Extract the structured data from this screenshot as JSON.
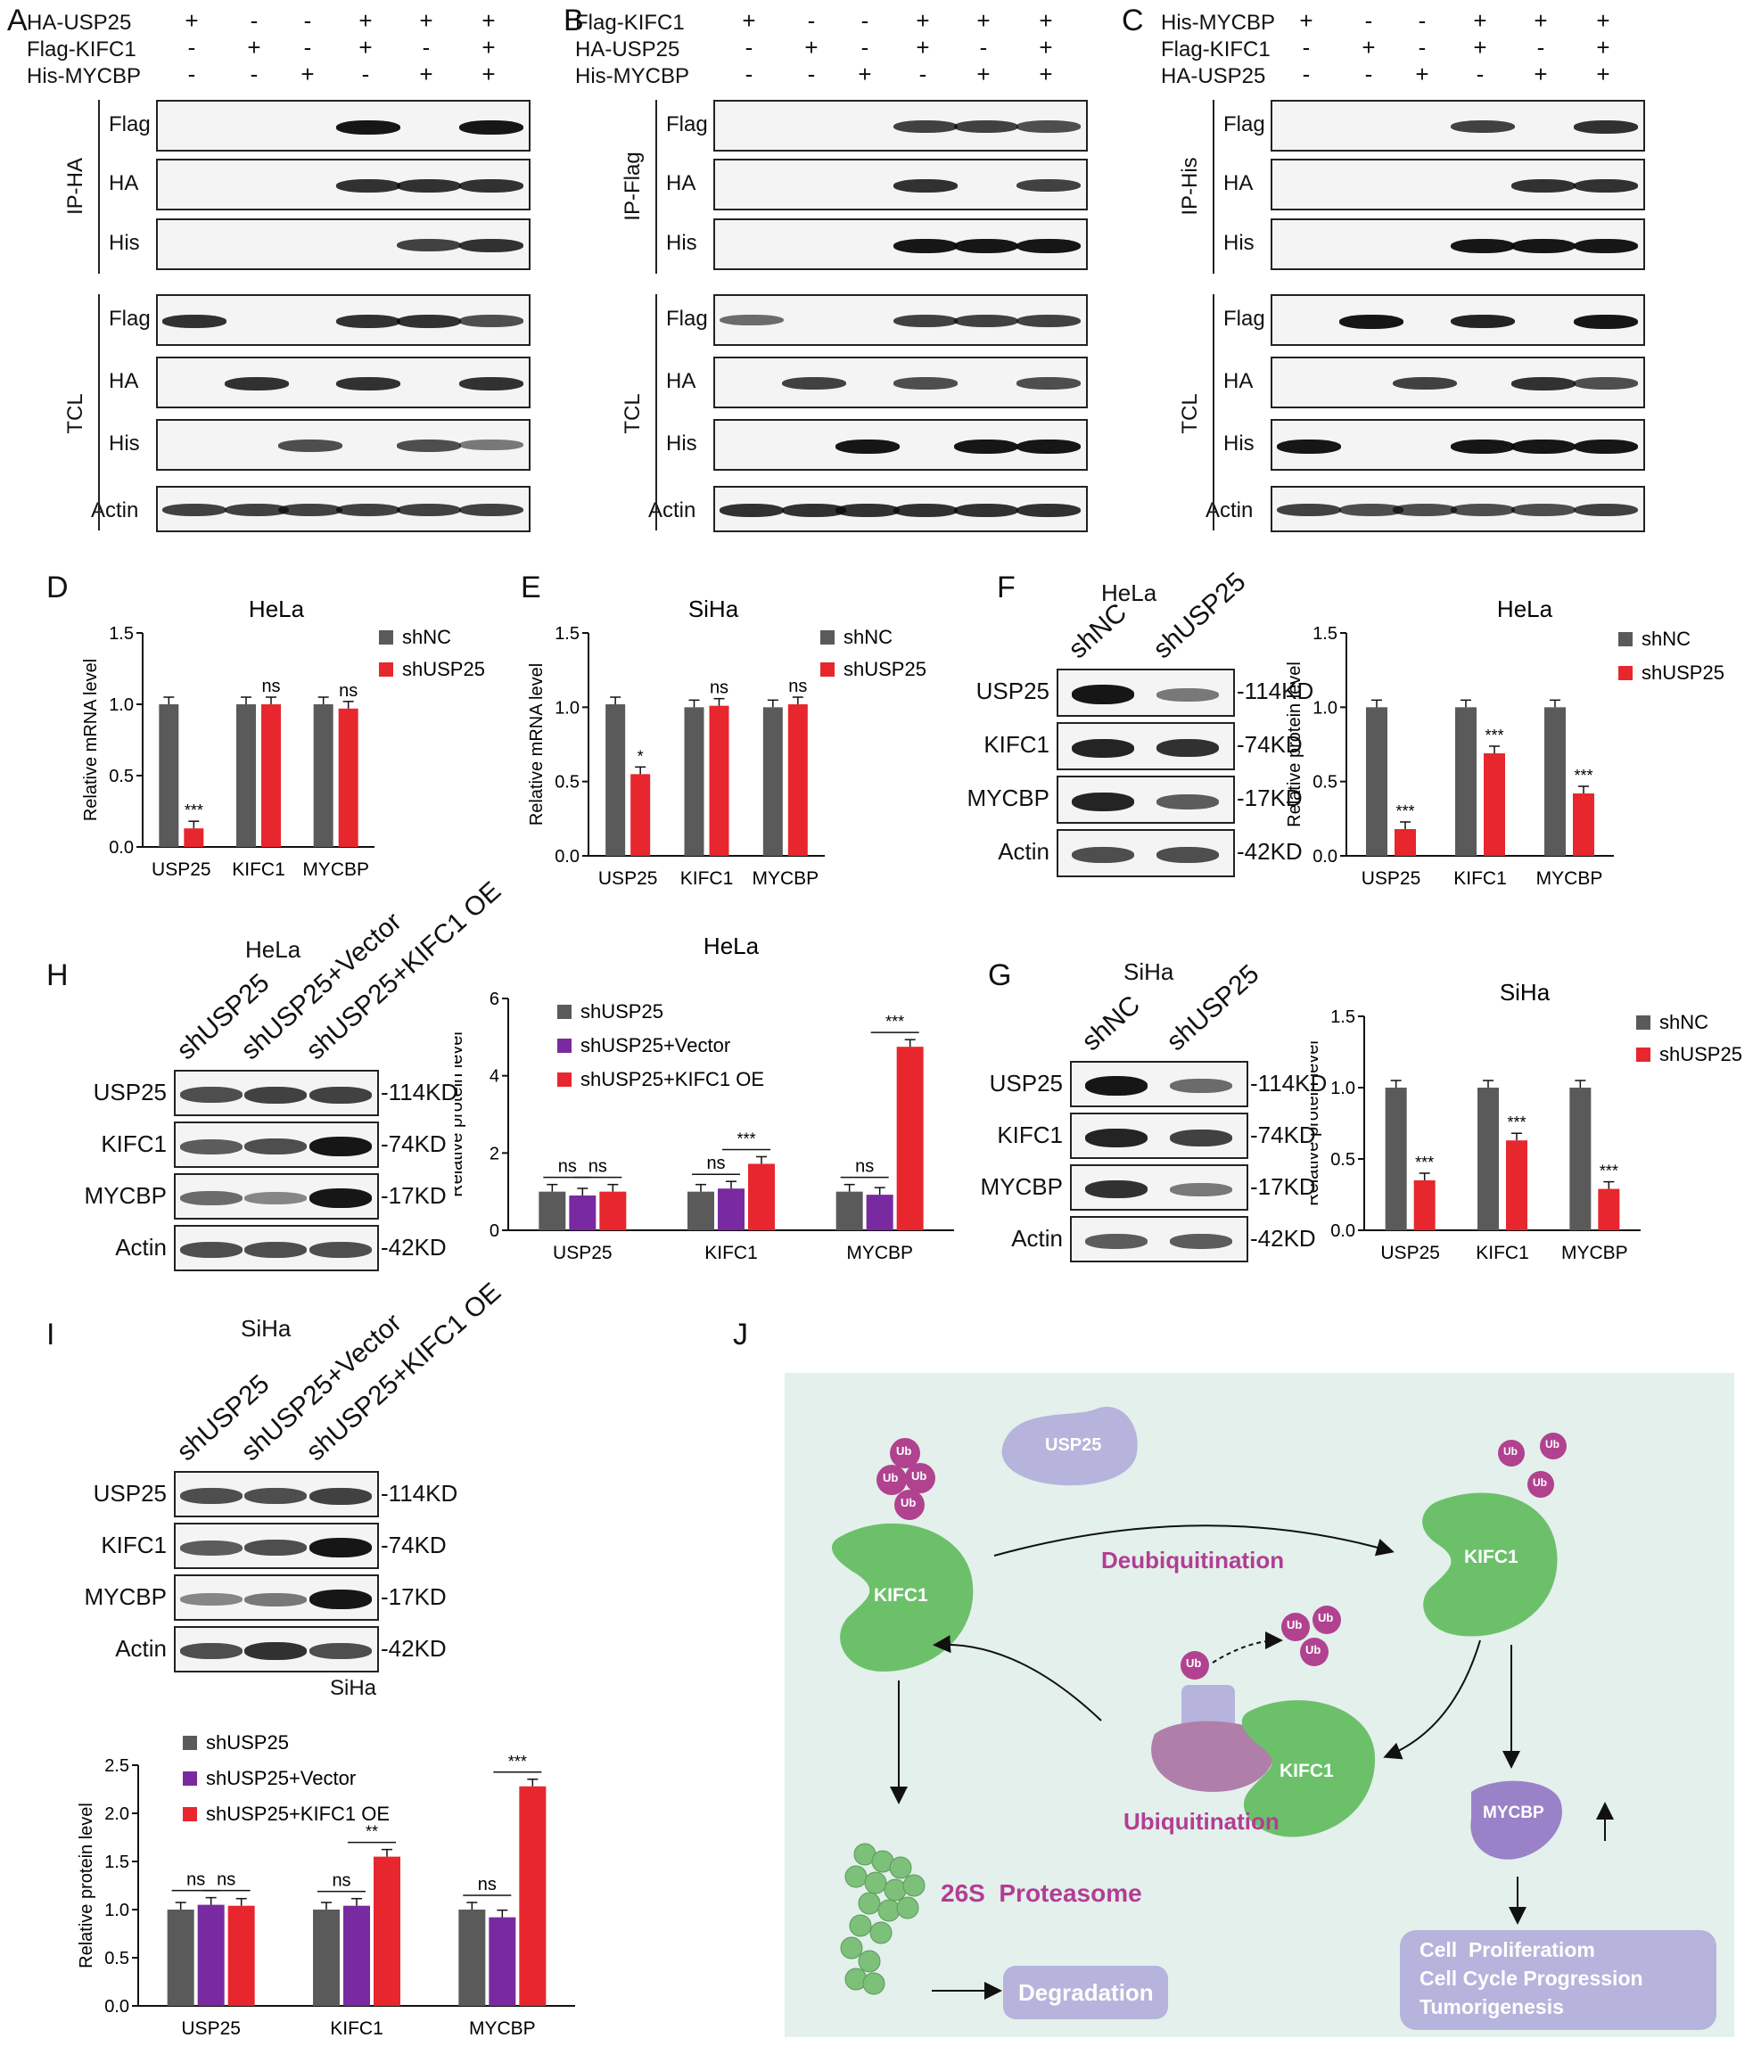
{
  "colors": {
    "shNC": "#5a5a5a",
    "shUSP25": "#e8262d",
    "shVector": "#7a2aa0",
    "bgJ": "#e3f0ec",
    "ub": "#b1428f",
    "kifc1": "#6cc06a",
    "usp25": "#b6b4dc",
    "text_purple": "#b33d93"
  },
  "panel_labels": [
    "A",
    "B",
    "C",
    "D",
    "E",
    "F",
    "G",
    "H",
    "I",
    "J"
  ],
  "panelA": {
    "rows": [
      {
        "label": "HA-USP25",
        "signs": [
          "+",
          "-",
          "-",
          "+",
          "+",
          "+"
        ]
      },
      {
        "label": "Flag-KIFC1",
        "signs": [
          "-",
          "+",
          "-",
          "+",
          "-",
          "+"
        ]
      },
      {
        "label": "His-MYCBP",
        "signs": [
          "-",
          "-",
          "+",
          "-",
          "+",
          "+"
        ]
      }
    ],
    "ip_group": "IP-HA",
    "tcl_group": "TCL",
    "blots": [
      "Flag",
      "HA",
      "His",
      "Flag",
      "HA",
      "His",
      "Actin"
    ]
  },
  "panelB": {
    "rows": [
      {
        "label": "Flag-KIFC1",
        "signs": [
          "+",
          "-",
          "-",
          "+",
          "+",
          "+"
        ]
      },
      {
        "label": "HA-USP25",
        "signs": [
          "-",
          "+",
          "-",
          "+",
          "-",
          "+"
        ]
      },
      {
        "label": "His-MYCBP",
        "signs": [
          "-",
          "-",
          "+",
          "-",
          "+",
          "+"
        ]
      }
    ],
    "ip_group": "IP-Flag",
    "tcl_group": "TCL",
    "blots": [
      "Flag",
      "HA",
      "His",
      "Flag",
      "HA",
      "His",
      "Actin"
    ]
  },
  "panelC": {
    "rows": [
      {
        "label": "His-MYCBP",
        "signs": [
          "+",
          "-",
          "-",
          "+",
          "+",
          "+"
        ]
      },
      {
        "label": "Flag-KIFC1",
        "signs": [
          "-",
          "+",
          "-",
          "+",
          "-",
          "+"
        ]
      },
      {
        "label": "HA-USP25",
        "signs": [
          "-",
          "-",
          "+",
          "-",
          "+",
          "+"
        ]
      }
    ],
    "ip_group": "IP-His",
    "tcl_group": "TCL",
    "blots": [
      "Flag",
      "HA",
      "His",
      "Flag",
      "HA",
      "His",
      "Actin"
    ]
  },
  "chart_data": [
    {
      "id": "D",
      "type": "bar",
      "title": "HeLa",
      "ylabel": "Relative mRNA level",
      "ylim": [
        0,
        1.5
      ],
      "yticks": [
        "0.0",
        "0.5",
        "1.0",
        "1.5"
      ],
      "categories": [
        "USP25",
        "KIFC1",
        "MYCBP"
      ],
      "series": [
        {
          "name": "shNC",
          "values": [
            1.0,
            1.0,
            1.0
          ]
        },
        {
          "name": "shUSP25",
          "values": [
            0.13,
            1.0,
            0.97
          ]
        }
      ],
      "annotations": [
        "***",
        "ns",
        "ns"
      ]
    },
    {
      "id": "E",
      "type": "bar",
      "title": "SiHa",
      "ylabel": "Relative mRNA level",
      "ylim": [
        0,
        1.5
      ],
      "yticks": [
        "0.0",
        "0.5",
        "1.0",
        "1.5"
      ],
      "categories": [
        "USP25",
        "KIFC1",
        "MYCBP"
      ],
      "series": [
        {
          "name": "shNC",
          "values": [
            1.02,
            1.0,
            1.0
          ]
        },
        {
          "name": "shUSP25",
          "values": [
            0.55,
            1.01,
            1.02
          ]
        }
      ],
      "annotations": [
        "*",
        "ns",
        "ns"
      ]
    },
    {
      "id": "F",
      "type": "bar",
      "title": "HeLa",
      "ylabel": "Relative protein level",
      "ylim": [
        0,
        1.5
      ],
      "yticks": [
        "0.0",
        "0.5",
        "1.0",
        "1.5"
      ],
      "categories": [
        "USP25",
        "KIFC1",
        "MYCBP"
      ],
      "series": [
        {
          "name": "shNC",
          "values": [
            1.0,
            1.0,
            1.0
          ]
        },
        {
          "name": "shUSP25",
          "values": [
            0.18,
            0.69,
            0.42
          ]
        }
      ],
      "annotations": [
        "***",
        "***",
        "***"
      ]
    },
    {
      "id": "G",
      "type": "bar",
      "title": "SiHa",
      "ylabel": "Relative protein level",
      "ylim": [
        0,
        1.5
      ],
      "yticks": [
        "0.0",
        "0.5",
        "1.0",
        "1.5"
      ],
      "categories": [
        "USP25",
        "KIFC1",
        "MYCBP"
      ],
      "series": [
        {
          "name": "shNC",
          "values": [
            1.0,
            1.0,
            1.0
          ]
        },
        {
          "name": "shUSP25",
          "values": [
            0.35,
            0.63,
            0.29
          ]
        }
      ],
      "annotations": [
        "***",
        "***",
        "***"
      ]
    },
    {
      "id": "H",
      "type": "bar",
      "title": "HeLa",
      "ylabel": "Relative protein level",
      "ylim": [
        0,
        6
      ],
      "yticks": [
        "0",
        "2",
        "4",
        "6"
      ],
      "categories": [
        "USP25",
        "KIFC1",
        "MYCBP"
      ],
      "series": [
        {
          "name": "shUSP25",
          "values": [
            1.0,
            1.0,
            1.0
          ]
        },
        {
          "name": "shUSP25+Vector",
          "values": [
            0.9,
            1.08,
            0.92
          ]
        },
        {
          "name": "shUSP25+KIFC1 OE",
          "values": [
            1.0,
            1.72,
            4.75
          ]
        }
      ],
      "annotations": [
        [
          "ns",
          "ns"
        ],
        [
          "ns",
          "***"
        ],
        [
          "ns",
          "***"
        ]
      ]
    },
    {
      "id": "I",
      "type": "bar",
      "title": "SiHa",
      "ylabel": "Relative protein level",
      "ylim": [
        0,
        2.5
      ],
      "yticks": [
        "0.0",
        "0.5",
        "1.0",
        "1.5",
        "2.0",
        "2.5"
      ],
      "categories": [
        "USP25",
        "KIFC1",
        "MYCBP"
      ],
      "series": [
        {
          "name": "shUSP25",
          "values": [
            1.0,
            1.0,
            1.0
          ]
        },
        {
          "name": "shUSP25+Vector",
          "values": [
            1.05,
            1.04,
            0.92
          ]
        },
        {
          "name": "shUSP25+KIFC1 OE",
          "values": [
            1.04,
            1.55,
            2.28
          ]
        }
      ],
      "annotations": [
        [
          "ns",
          "ns"
        ],
        [
          "ns",
          "**"
        ],
        [
          "ns",
          "***"
        ]
      ]
    }
  ],
  "blotF": {
    "title": "HeLa",
    "lanes": [
      "shNC",
      "shUSP25"
    ],
    "rows": [
      "USP25",
      "KIFC1",
      "MYCBP",
      "Actin"
    ],
    "sizes": [
      "114KD",
      "74KD",
      "17KD",
      "42KD"
    ]
  },
  "blotG": {
    "title": "SiHa",
    "lanes": [
      "shNC",
      "shUSP25"
    ],
    "rows": [
      "USP25",
      "KIFC1",
      "MYCBP",
      "Actin"
    ],
    "sizes": [
      "114KD",
      "74KD",
      "17KD",
      "42KD"
    ]
  },
  "blotH": {
    "title": "HeLa",
    "lanes": [
      "shUSP25",
      "shUSP25+Vector",
      "shUSP25+KIFC1 OE"
    ],
    "rows": [
      "USP25",
      "KIFC1",
      "MYCBP",
      "Actin"
    ],
    "sizes": [
      "114KD",
      "74KD",
      "17KD",
      "42KD"
    ]
  },
  "blotI": {
    "title": "SiHa",
    "lanes": [
      "shUSP25",
      "shUSP25+Vector",
      "shUSP25+KIFC1 OE"
    ],
    "rows": [
      "USP25",
      "KIFC1",
      "MYCBP",
      "Actin"
    ],
    "sizes": [
      "114KD",
      "74KD",
      "17KD",
      "42KD"
    ],
    "chart_title": "SiHa"
  },
  "panelJ": {
    "ub": "Ub",
    "kifc1": "KIFC1",
    "usp25": "USP25",
    "mycbp": "MYCBP",
    "deubiquitination": "Deubiquitination",
    "ubiquitination": "Ubiquitination",
    "proteasome": "26S  Proteasome",
    "degradation": "Degradation",
    "outcomes": [
      "Cell  Proliferatiom",
      "Cell Cycle Progression",
      "Tumorigenesis"
    ]
  }
}
